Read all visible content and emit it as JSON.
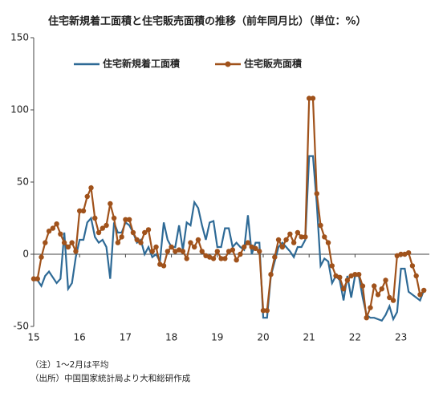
{
  "chart_data": {
    "type": "line",
    "title": "住宅新規着工面積と住宅販売面積の推移（前年同月比）（単位：%）",
    "notes": [
      "（注）1～2月は平均",
      "（出所）中国国家統計局より大和総研作成"
    ],
    "categories": [
      "15",
      null,
      null,
      null,
      null,
      null,
      null,
      null,
      null,
      null,
      null,
      null,
      "16",
      null,
      null,
      null,
      null,
      null,
      null,
      null,
      null,
      null,
      null,
      null,
      "17",
      null,
      null,
      null,
      null,
      null,
      null,
      null,
      null,
      null,
      null,
      null,
      "18",
      null,
      null,
      null,
      null,
      null,
      null,
      null,
      null,
      null,
      null,
      null,
      "19",
      null,
      null,
      null,
      null,
      null,
      null,
      null,
      null,
      null,
      null,
      null,
      "20",
      null,
      null,
      null,
      null,
      null,
      null,
      null,
      null,
      null,
      null,
      null,
      "21",
      null,
      null,
      null,
      null,
      null,
      null,
      null,
      null,
      null,
      null,
      null,
      "22",
      null,
      null,
      null,
      null,
      null,
      null,
      null,
      null,
      null,
      null,
      null,
      "23",
      null,
      null,
      null,
      null,
      null,
      null
    ],
    "series": [
      {
        "name": "住宅新規着工面積",
        "color": "#2e6a96",
        "markers": false,
        "values": [
          -18,
          -18,
          -22,
          -15,
          -12,
          -16,
          -20,
          -17,
          15,
          -24,
          -20,
          -2,
          10,
          10,
          22,
          25,
          12,
          8,
          10,
          5,
          -17,
          22,
          15,
          15,
          22,
          20,
          15,
          8,
          10,
          0,
          5,
          -2,
          0,
          -5,
          22,
          10,
          5,
          5,
          20,
          3,
          22,
          20,
          36,
          32,
          20,
          10,
          22,
          23,
          5,
          5,
          18,
          18,
          5,
          8,
          5,
          3,
          27,
          0,
          8,
          8,
          -44,
          -44,
          -15,
          -5,
          5,
          8,
          5,
          2,
          -2,
          5,
          5,
          10,
          68,
          68,
          35,
          -8,
          -3,
          -5,
          -20,
          -15,
          -18,
          -32,
          -15,
          -30,
          -15,
          -15,
          -30,
          -42,
          -44,
          -44,
          -45,
          -46,
          -42,
          -36,
          -45,
          -40,
          -10,
          -10,
          -26,
          -28,
          -30,
          -32,
          -25
        ]
      },
      {
        "name": "住宅販売面積",
        "color": "#a0521b",
        "markers": true,
        "values": [
          -17,
          -17,
          -2,
          8,
          16,
          18,
          21,
          14,
          8,
          5,
          8,
          2,
          30,
          30,
          40,
          46,
          25,
          15,
          18,
          20,
          35,
          25,
          8,
          12,
          24,
          24,
          15,
          10,
          8,
          15,
          17,
          2,
          5,
          -7,
          -8,
          2,
          5,
          2,
          3,
          2,
          -3,
          8,
          5,
          10,
          2,
          -1,
          -2,
          -3,
          2,
          -3,
          -3,
          2,
          3,
          -4,
          0,
          5,
          8,
          5,
          4,
          2,
          -39,
          -39,
          -14,
          -2,
          10,
          5,
          10,
          14,
          8,
          15,
          12,
          12,
          108,
          108,
          42,
          20,
          12,
          8,
          -8,
          -15,
          -16,
          -24,
          -18,
          -15,
          -14,
          -14,
          -22,
          -44,
          -37,
          -22,
          -28,
          -24,
          -18,
          -30,
          -32,
          -1,
          0,
          0,
          1,
          -8,
          -15,
          -28,
          -25
        ]
      }
    ],
    "ylim": [
      -50,
      150
    ],
    "yticks": [
      150,
      100,
      50,
      0,
      -50
    ]
  }
}
